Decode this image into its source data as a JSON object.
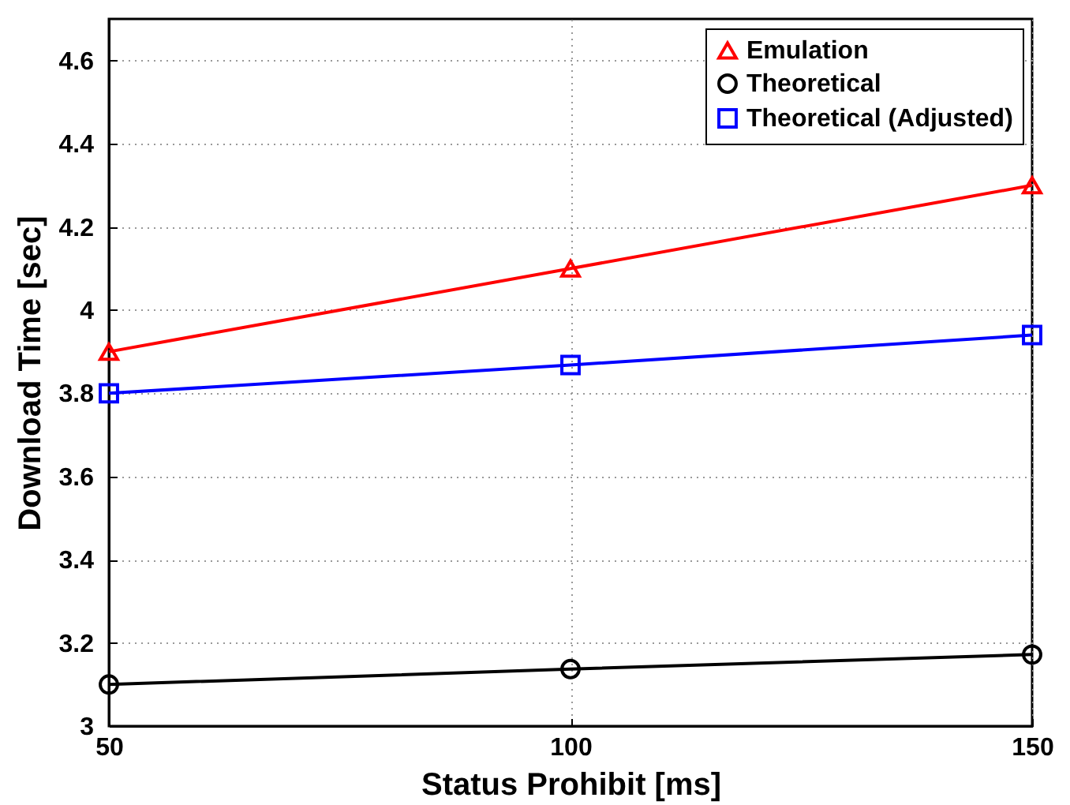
{
  "chart_data": {
    "type": "line",
    "xlabel": "Status Prohibit [ms]",
    "ylabel": "Download Time [sec]",
    "x": [
      50,
      100,
      150
    ],
    "xlim": [
      50,
      150
    ],
    "xticks": [
      50,
      100,
      150
    ],
    "ylim": [
      3,
      4.7
    ],
    "yticks": [
      3,
      3.2,
      3.4,
      3.6,
      3.8,
      4,
      4.2,
      4.4,
      4.6
    ],
    "grid": true,
    "legend": "top right",
    "series": [
      {
        "name": "Emulation",
        "color": "#ff0000",
        "marker": "triangle",
        "values": [
          3.9,
          4.1,
          4.3
        ]
      },
      {
        "name": "Theoretical",
        "color": "#000000",
        "marker": "circle",
        "values": [
          3.1,
          3.137,
          3.172
        ]
      },
      {
        "name": "Theoretical (Adjusted)",
        "color": "#0000ff",
        "marker": "square",
        "values": [
          3.8,
          3.868,
          3.94
        ]
      }
    ]
  }
}
